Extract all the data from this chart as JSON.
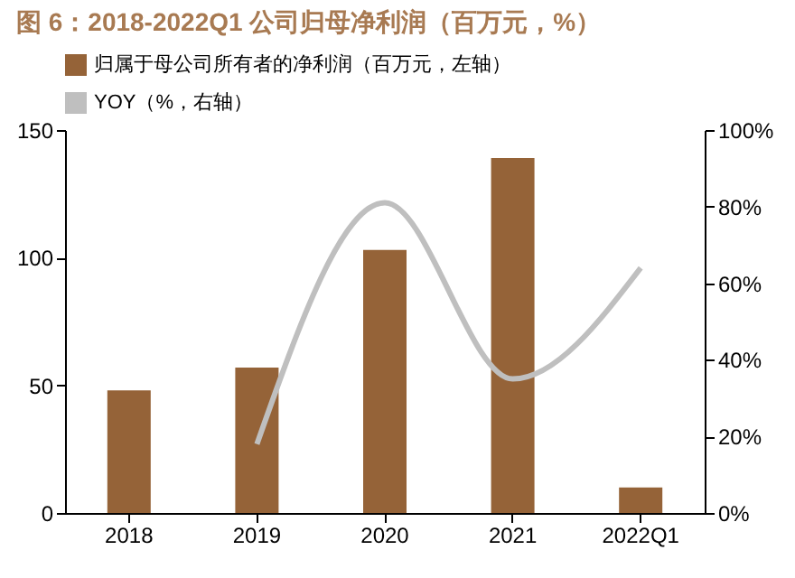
{
  "chart_data": {
    "type": "bar",
    "title": "图 6：2018-2022Q1 公司归母净利润（百万元，%）",
    "categories": [
      "2018",
      "2019",
      "2020",
      "2021",
      "2022Q1"
    ],
    "series": [
      {
        "name": "归属于母公司所有者的净利润（百万元，左轴）",
        "color": "#956338",
        "values": [
          48,
          57,
          103,
          139,
          10
        ]
      },
      {
        "name": "YOY（%，右轴）",
        "type": "line",
        "axis": "y2",
        "color": "#bfbfbf",
        "values": [
          null,
          18,
          81,
          35,
          64
        ]
      }
    ],
    "ylim": [
      0,
      150
    ],
    "yticks": [
      0,
      50,
      100,
      150
    ],
    "y2lim": [
      0,
      100
    ],
    "y2ticks": [
      {
        "value": 0,
        "label": "0%"
      },
      {
        "value": 20,
        "label": "20%"
      },
      {
        "value": 40,
        "label": "40%"
      },
      {
        "value": 60,
        "label": "60%"
      },
      {
        "value": 80,
        "label": "80%"
      },
      {
        "value": 100,
        "label": "100%"
      }
    ],
    "legend": "top left",
    "grid": false,
    "marker": "none",
    "line_style": "solid"
  }
}
